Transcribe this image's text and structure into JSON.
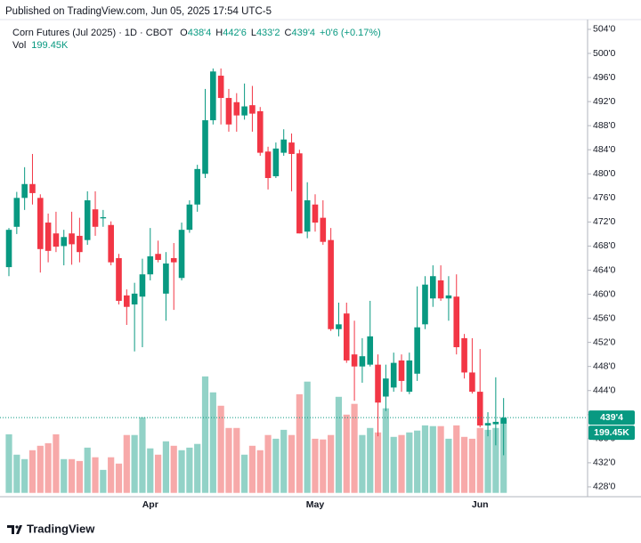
{
  "published": "Published on TradingView.com, Jun 05, 2025 17:54 UTC-5",
  "footer": "TradingView",
  "chart_data": {
    "type": "candlestick",
    "symbol": "Corn Futures (Jul 2025) · 1D · CBOT",
    "ohlc": [
      {
        "name": "O",
        "value": 438.5,
        "label": "438'4"
      },
      {
        "name": "H",
        "value": 442.75,
        "label": "442'6"
      },
      {
        "name": "L",
        "value": 433.25,
        "label": "433'2"
      },
      {
        "name": "C",
        "value": 439.5,
        "label": "439'4"
      }
    ],
    "change": "+0'6 (+0.17%)",
    "categories": [
      null,
      null,
      null,
      null,
      null,
      null,
      null,
      null,
      null,
      null,
      null,
      null,
      null,
      null,
      null,
      null,
      null,
      null,
      "Apr",
      null,
      null,
      null,
      null,
      null,
      null,
      null,
      null,
      null,
      null,
      null,
      null,
      null,
      null,
      null,
      null,
      null,
      null,
      null,
      null,
      "May",
      null,
      null,
      null,
      null,
      null,
      null,
      null,
      null,
      null,
      null,
      null,
      null,
      null,
      null,
      null,
      null,
      null,
      null,
      null,
      null,
      "Jun",
      null,
      null,
      null
    ],
    "open": [
      464.5,
      471.2,
      476.0,
      478.3,
      476.0,
      471.9,
      470.1,
      468.0,
      470.1,
      469.7,
      469.0,
      474.1,
      472.6,
      471.5,
      466.0,
      459.8,
      458.3,
      459.6,
      463.3,
      466.7,
      460.1,
      466.0,
      462.7,
      470.7,
      474.9,
      480.0,
      488.9,
      496.3,
      492.6,
      491.9,
      489.7,
      491.4,
      490.4,
      483.7,
      479.6,
      483.5,
      485.2,
      483.4,
      470.4,
      474.9,
      472.7,
      469.0,
      454.2,
      456.8,
      450.0,
      448.0,
      448.3,
      448.3,
      443.0,
      444.5,
      449.0,
      443.8,
      446.8,
      455.0,
      459.3,
      462.3,
      459.3,
      459.6,
      452.7,
      447.0,
      443.8,
      438.2,
      438.4,
      438.5
    ],
    "high": [
      471.0,
      477.0,
      481.1,
      483.3,
      476.6,
      473.4,
      473.7,
      470.7,
      473.7,
      472.7,
      477.1,
      477.1,
      474.0,
      472.1,
      466.7,
      460.8,
      461.9,
      465.9,
      471.0,
      468.9,
      467.0,
      468.5,
      471.9,
      475.6,
      481.5,
      494.1,
      497.5,
      497.5,
      494.1,
      493.4,
      495.0,
      494.6,
      491.1,
      484.5,
      485.2,
      487.4,
      486.7,
      484.0,
      478.6,
      476.6,
      475.6,
      471.0,
      458.6,
      458.6,
      455.6,
      452.7,
      458.9,
      450.0,
      448.3,
      450.3,
      450.0,
      450.3,
      461.3,
      463.0,
      464.8,
      464.8,
      463.0,
      463.3,
      453.4,
      452.7,
      450.9,
      440.4,
      446.2,
      442.75
    ],
    "low": [
      463.0,
      470.0,
      474.0,
      474.9,
      463.6,
      465.3,
      467.0,
      464.8,
      464.9,
      465.3,
      468.2,
      469.7,
      471.2,
      464.8,
      458.3,
      454.9,
      450.5,
      451.2,
      462.3,
      465.3,
      455.6,
      457.4,
      462.3,
      470.2,
      473.7,
      479.3,
      488.2,
      488.2,
      487.0,
      487.0,
      489.0,
      487.0,
      483.0,
      477.4,
      479.3,
      483.0,
      477.1,
      470.1,
      469.3,
      470.4,
      468.2,
      453.9,
      453.0,
      448.6,
      442.3,
      445.3,
      448.0,
      436.4,
      440.6,
      443.8,
      443.8,
      443.4,
      445.6,
      454.2,
      457.9,
      458.9,
      455.6,
      450.0,
      446.0,
      443.5,
      437.9,
      436.4,
      434.9,
      433.25
    ],
    "close": [
      470.7,
      476.0,
      478.3,
      476.8,
      467.5,
      467.2,
      467.9,
      469.5,
      468.3,
      467.0,
      475.6,
      471.2,
      472.8,
      465.3,
      458.9,
      457.9,
      460.1,
      463.3,
      466.3,
      465.7,
      465.1,
      465.3,
      470.7,
      474.9,
      480.8,
      488.9,
      497.0,
      492.6,
      488.2,
      489.7,
      491.2,
      490.0,
      483.5,
      479.3,
      484.2,
      485.7,
      483.3,
      470.1,
      475.6,
      471.9,
      468.7,
      454.2,
      455.0,
      449.0,
      448.0,
      449.7,
      453.0,
      442.0,
      446.0,
      448.6,
      445.6,
      449.0,
      454.5,
      461.6,
      463.0,
      459.3,
      459.8,
      451.2,
      447.0,
      443.8,
      438.2,
      438.6,
      438.8,
      439.5
    ],
    "volume": {
      "name": "Vol",
      "values": [
        158000,
        103000,
        91000,
        115000,
        127000,
        134000,
        158000,
        91000,
        91000,
        86000,
        122000,
        96000,
        62000,
        96000,
        79000,
        156000,
        156000,
        204000,
        120000,
        103000,
        139000,
        127000,
        115000,
        122000,
        132000,
        314000,
        271000,
        235000,
        175000,
        175000,
        103000,
        127000,
        115000,
        156000,
        146000,
        170000,
        156000,
        266000,
        300000,
        146000,
        144000,
        156000,
        259000,
        211000,
        240000,
        156000,
        175000,
        163000,
        228000,
        151000,
        156000,
        163000,
        168000,
        182000,
        180000,
        180000,
        146000,
        182000,
        151000,
        146000,
        175000,
        170000,
        175000,
        199450
      ],
      "value_labels": [
        null,
        null,
        null,
        null,
        null,
        null,
        null,
        null,
        null,
        null,
        null,
        null,
        null,
        null,
        null,
        null,
        null,
        null,
        null,
        null,
        null,
        null,
        null,
        null,
        null,
        null,
        null,
        null,
        null,
        null,
        null,
        null,
        null,
        null,
        null,
        null,
        null,
        null,
        null,
        null,
        null,
        null,
        null,
        null,
        null,
        null,
        null,
        null,
        null,
        null,
        null,
        null,
        null,
        null,
        null,
        null,
        null,
        null,
        null,
        null,
        null,
        null,
        null,
        "199.45K"
      ],
      "vlim": [
        0,
        480000
      ]
    },
    "last_price": {
      "value": 439.5,
      "label": "439'4"
    },
    "ylim": [
      427,
      505
    ],
    "yticks": [
      {
        "value": 428,
        "label": "428'0"
      },
      {
        "value": 432,
        "label": "432'0"
      },
      {
        "value": 436,
        "label": "436'0"
      },
      {
        "value": 440,
        "label": "440'0"
      },
      {
        "value": 444,
        "label": "444'0"
      },
      {
        "value": 448,
        "label": "448'0"
      },
      {
        "value": 452,
        "label": "452'0"
      },
      {
        "value": 456,
        "label": "456'0"
      },
      {
        "value": 460,
        "label": "460'0"
      },
      {
        "value": 464,
        "label": "464'0"
      },
      {
        "value": 468,
        "label": "468'0"
      },
      {
        "value": 472,
        "label": "472'0"
      },
      {
        "value": 476,
        "label": "476'0"
      },
      {
        "value": 480,
        "label": "480'0"
      },
      {
        "value": 484,
        "label": "484'0"
      },
      {
        "value": 488,
        "label": "488'0"
      },
      {
        "value": 492,
        "label": "492'0"
      },
      {
        "value": 496,
        "label": "496'0"
      },
      {
        "value": 500,
        "label": "500'0"
      },
      {
        "value": 504,
        "label": "504'0"
      }
    ],
    "grid": false,
    "up_color": "#089981",
    "down_color": "#f23645",
    "up_volume_color": "#92d2c7",
    "down_volume_color": "#f7a9a9"
  }
}
